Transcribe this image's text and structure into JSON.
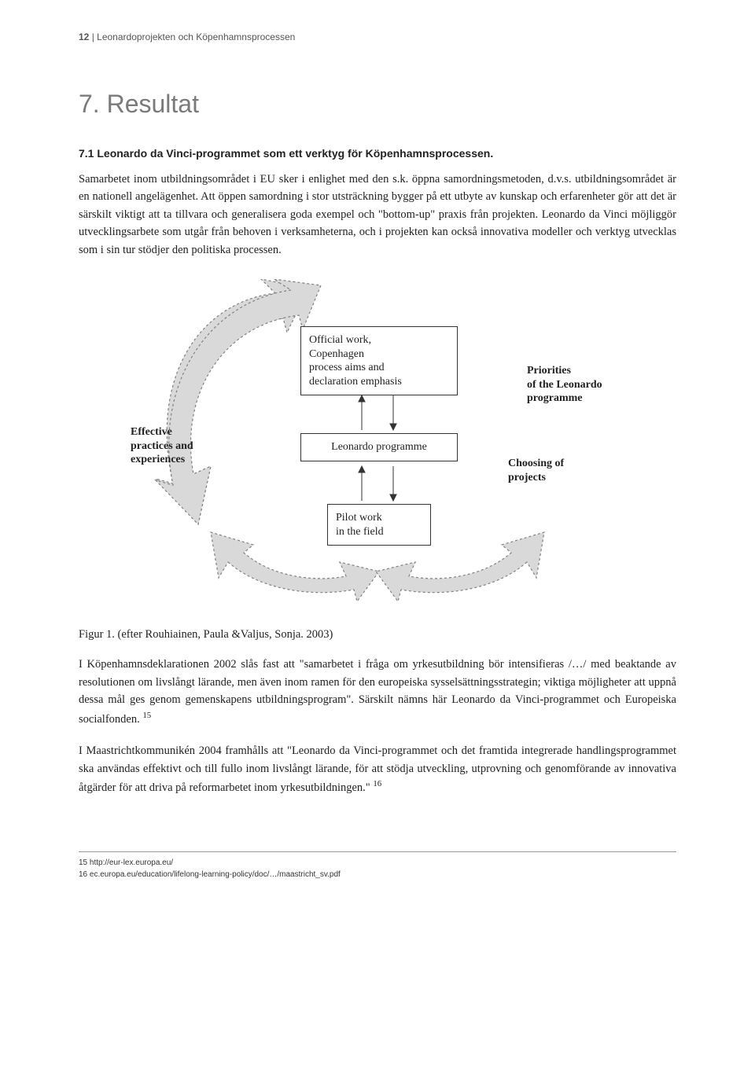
{
  "running_head": {
    "pagenum": "12",
    "sep": " | ",
    "title": "Leonardoprojekten och Köpenhamnsprocessen"
  },
  "chapter_title": "7. Resultat",
  "section_title": "7.1   Leonardo da Vinci-programmet som ett verktyg för Köpenhamnsprocessen.",
  "para1": "Samarbetet inom utbildningsområdet i EU sker i enlighet med den s.k. öppna samordningsmetoden, d.v.s. utbildningsområdet är en nationell angelägenhet. Att öppen samordning i stor utsträckning bygger på ett utbyte av kunskap och erfarenheter gör att det är särskilt viktigt att ta tillvara och generalisera goda exempel och \"bottom-up\" praxis från projekten. Leonardo da Vinci möjliggör utvecklingsarbete som utgår från behoven i verksamheterna, och i projekten kan också innovativa modeller och verktyg utvecklas som i sin tur stödjer den politiska processen.",
  "diagram": {
    "top_box": "Official work,\nCopenhagen\nprocess aims and\ndeclaration emphasis",
    "middle_box": "Leonardo programme",
    "bottom_box": "Pilot work\nin the field",
    "left_label": "Effective\npractices and\nexperiences",
    "right_top_label": "Priorities\nof the Leonardo\nprogramme",
    "right_bottom_label": "Choosing of\nprojects",
    "arrow_stroke": "#808080",
    "arrow_fill": "#d9d9d9"
  },
  "fig_caption": "Figur 1. (efter Rouhiainen, Paula &Valjus, Sonja. 2003)",
  "para2_pre": "I Köpenhamnsdeklarationen 2002 slås fast att \"samarbetet i fråga om yrkesutbildning bör intensifieras /…/ med beaktande av resolutionen om livslångt lärande, men även inom ramen för den europeiska sysselsättningsstrategin; viktiga möjligheter att uppnå dessa mål ges genom gemenskapens utbildningsprogram\". Särskilt nämns här Leonardo da Vinci-programmet och Europeiska socialfonden. ",
  "para2_sup": "15",
  "para3_pre": "I Maastrichtkommunikén 2004 framhålls att \"Leonardo da Vinci-programmet och det framtida integrerade handlingsprogrammet ska användas effektivt och till fullo inom livslångt lärande, för att stödja utveckling, utprovning och genomförande av innovativa åtgärder för att driva på reformarbetet inom yrkesutbildningen.\" ",
  "para3_sup": "16",
  "footnotes": {
    "n15": "15  http://eur-lex.europa.eu/",
    "n16": "16  ec.europa.eu/education/lifelong-learning-policy/doc/…/maastricht_sv.pdf"
  }
}
